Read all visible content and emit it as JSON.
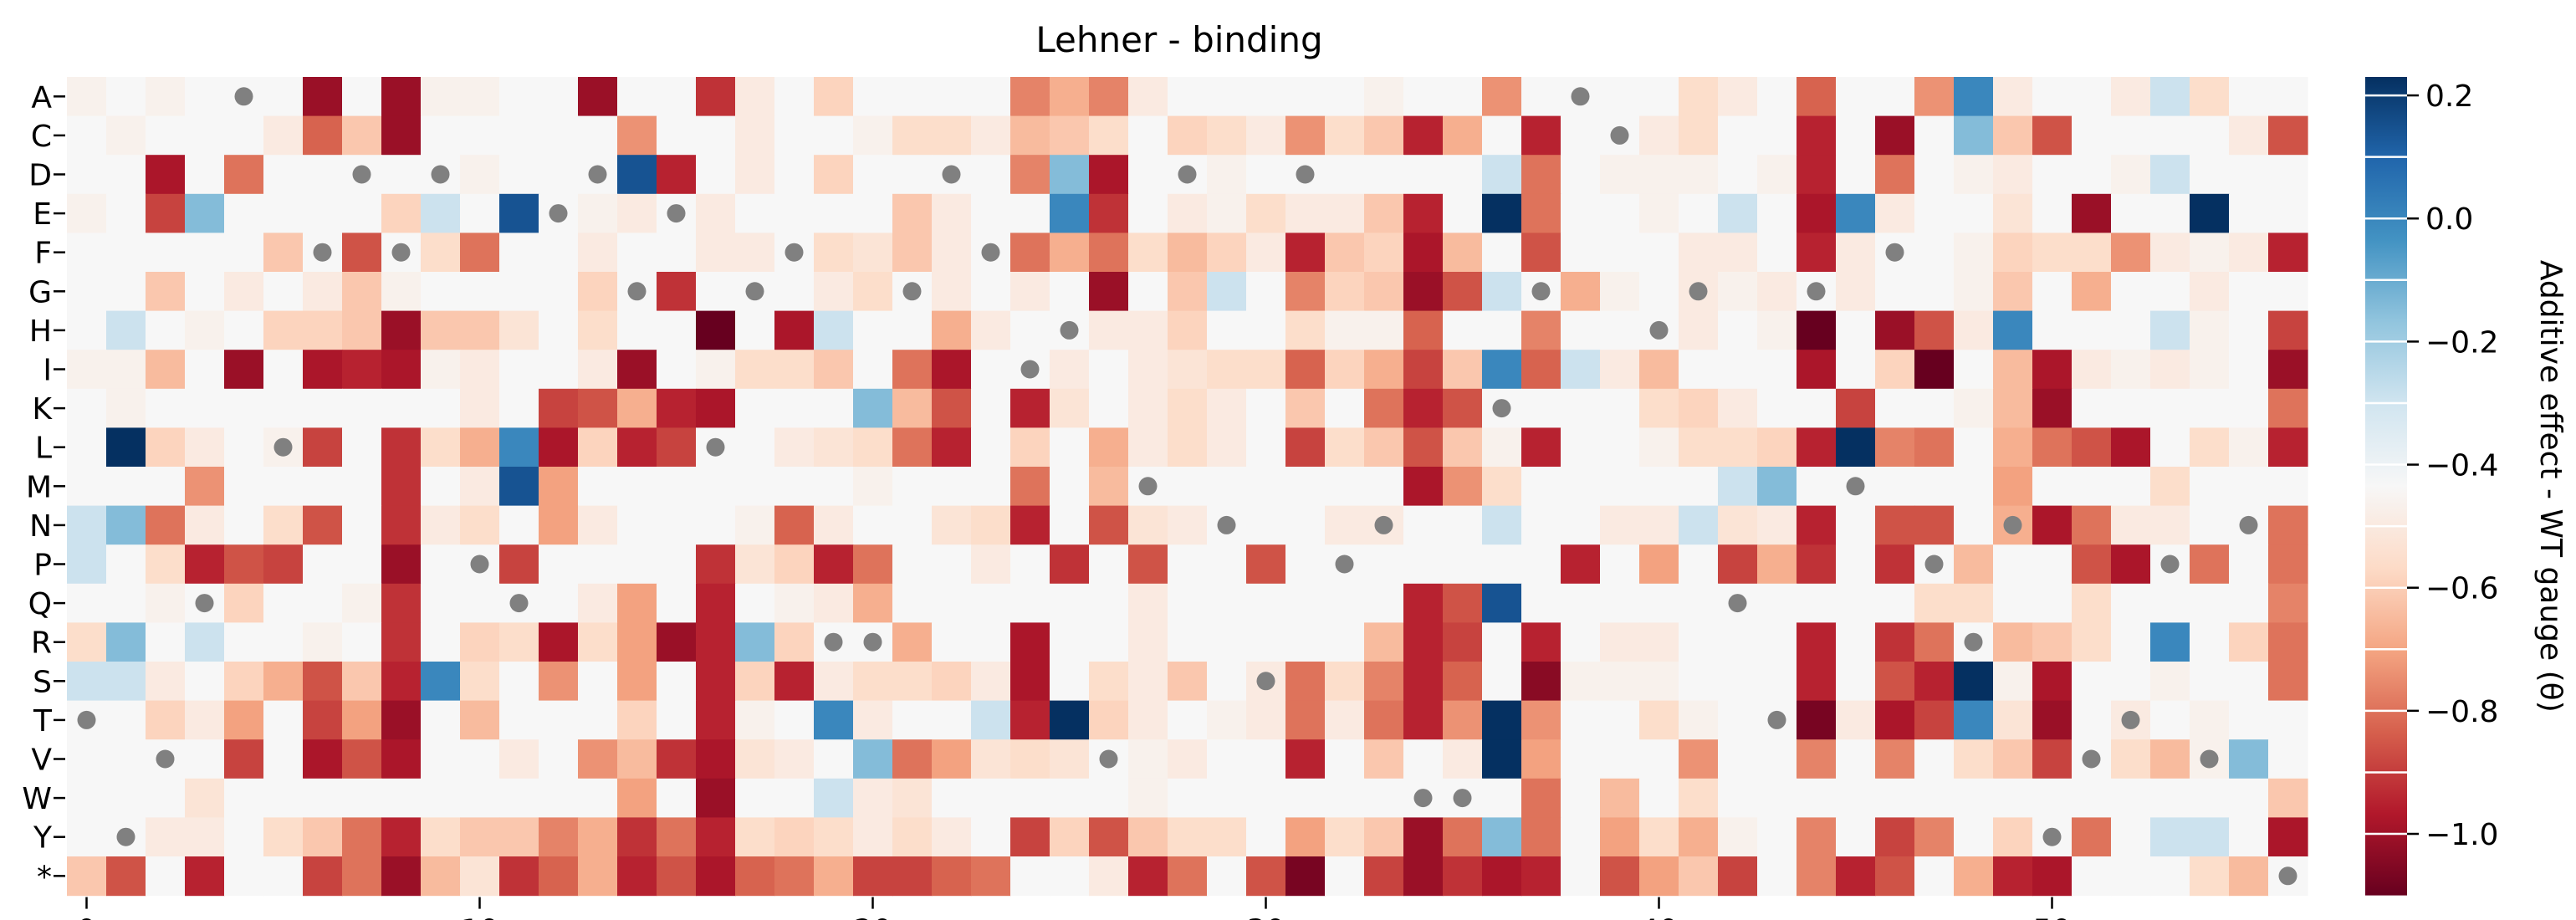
{
  "chart_data": {
    "type": "heatmap",
    "title": "Lehner - binding",
    "xlabel": "",
    "ylabel": "",
    "x_range": [
      0,
      56
    ],
    "x_ticks": [
      0,
      10,
      20,
      30,
      40,
      50
    ],
    "rows": [
      "A",
      "C",
      "D",
      "E",
      "F",
      "G",
      "H",
      "I",
      "K",
      "L",
      "M",
      "N",
      "P",
      "Q",
      "R",
      "S",
      "T",
      "V",
      "W",
      "Y",
      "*"
    ],
    "colorbar": {
      "label": "Additive effect - WT gauge (θ)",
      "ticks": [
        0.2,
        0.0,
        -0.2,
        -0.4,
        -0.6,
        -0.8,
        -1.0
      ],
      "tick_labels": [
        "0.2",
        "0.0",
        "−0.2",
        "−0.4",
        "−0.6",
        "−0.8",
        "−1.0"
      ],
      "vmin": -1.1,
      "vmax": 0.23,
      "colormap": "RdBu"
    },
    "wt_marker_color": "#808080",
    "wt_positions": [
      {
        "row": "A",
        "col": 4
      },
      {
        "row": "A",
        "col": 38
      },
      {
        "row": "C",
        "col": 39
      },
      {
        "row": "D",
        "col": 7
      },
      {
        "row": "D",
        "col": 9
      },
      {
        "row": "D",
        "col": 13
      },
      {
        "row": "D",
        "col": 22
      },
      {
        "row": "D",
        "col": 28
      },
      {
        "row": "D",
        "col": 31
      },
      {
        "row": "E",
        "col": 12
      },
      {
        "row": "E",
        "col": 15
      },
      {
        "row": "F",
        "col": 6
      },
      {
        "row": "F",
        "col": 8
      },
      {
        "row": "F",
        "col": 18
      },
      {
        "row": "F",
        "col": 23
      },
      {
        "row": "F",
        "col": 46
      },
      {
        "row": "G",
        "col": 14
      },
      {
        "row": "G",
        "col": 17
      },
      {
        "row": "G",
        "col": 21
      },
      {
        "row": "G",
        "col": 37
      },
      {
        "row": "G",
        "col": 41
      },
      {
        "row": "G",
        "col": 44
      },
      {
        "row": "H",
        "col": 25
      },
      {
        "row": "H",
        "col": 40
      },
      {
        "row": "I",
        "col": 24
      },
      {
        "row": "K",
        "col": 36
      },
      {
        "row": "L",
        "col": 5
      },
      {
        "row": "L",
        "col": 16
      },
      {
        "row": "M",
        "col": 27
      },
      {
        "row": "M",
        "col": 45
      },
      {
        "row": "N",
        "col": 29
      },
      {
        "row": "N",
        "col": 33
      },
      {
        "row": "N",
        "col": 49
      },
      {
        "row": "N",
        "col": 55
      },
      {
        "row": "P",
        "col": 10
      },
      {
        "row": "P",
        "col": 32
      },
      {
        "row": "P",
        "col": 47
      },
      {
        "row": "P",
        "col": 53
      },
      {
        "row": "Q",
        "col": 3
      },
      {
        "row": "Q",
        "col": 11
      },
      {
        "row": "Q",
        "col": 42
      },
      {
        "row": "R",
        "col": 19
      },
      {
        "row": "R",
        "col": 20
      },
      {
        "row": "R",
        "col": 48
      },
      {
        "row": "S",
        "col": 30
      },
      {
        "row": "T",
        "col": 0
      },
      {
        "row": "T",
        "col": 43
      },
      {
        "row": "T",
        "col": 52
      },
      {
        "row": "V",
        "col": 2
      },
      {
        "row": "V",
        "col": 26
      },
      {
        "row": "V",
        "col": 51
      },
      {
        "row": "V",
        "col": 54
      },
      {
        "row": "W",
        "col": 34
      },
      {
        "row": "W",
        "col": 35
      },
      {
        "row": "Y",
        "col": 1
      },
      {
        "row": "Y",
        "col": 50
      },
      {
        "row": "*",
        "col": 56
      }
    ],
    "values_by_row": {
      "A": [
        -0.05,
        0,
        -0.05,
        0,
        0,
        0,
        -0.95,
        0,
        -0.95,
        -0.05,
        -0.05,
        0,
        0,
        -0.95,
        0,
        0,
        -0.8,
        -0.1,
        0,
        -0.25,
        0,
        0,
        0,
        0,
        -0.55,
        -0.4,
        -0.55,
        -0.1,
        0,
        0,
        0,
        0,
        0,
        -0.05,
        0,
        0,
        -0.5,
        0,
        0,
        0,
        0,
        -0.2,
        -0.1,
        0,
        -0.65,
        0,
        0,
        -0.5,
        0.15,
        -0.1,
        0,
        0,
        -0.1,
        0.05,
        -0.2,
        0,
        0
      ],
      "C": [
        0,
        -0.05,
        0,
        0,
        0,
        -0.1,
        -0.65,
        -0.3,
        -0.95,
        0,
        0,
        0,
        0,
        0,
        -0.5,
        0,
        0,
        -0.1,
        0,
        0,
        -0.05,
        -0.2,
        -0.2,
        -0.1,
        -0.35,
        -0.3,
        -0.2,
        0,
        -0.25,
        -0.2,
        -0.1,
        -0.5,
        -0.2,
        -0.3,
        -0.85,
        -0.4,
        0,
        -0.85,
        0,
        0,
        -0.1,
        -0.2,
        0,
        0,
        -0.85,
        0,
        -0.95,
        0,
        0.1,
        -0.3,
        -0.7,
        0,
        0,
        0,
        0,
        -0.1,
        -0.7
      ],
      "D": [
        0,
        0,
        -0.9,
        0,
        -0.6,
        0,
        0,
        0,
        0,
        0,
        -0.05,
        0,
        0,
        0,
        0.2,
        -0.85,
        0,
        -0.1,
        0,
        -0.25,
        0,
        0,
        0,
        0,
        -0.55,
        0.1,
        -0.9,
        0,
        0,
        -0.05,
        0,
        0,
        0,
        0,
        0,
        0,
        0.05,
        -0.6,
        0,
        -0.05,
        -0.05,
        -0.05,
        0,
        -0.05,
        -0.85,
        0,
        -0.6,
        0,
        -0.05,
        -0.1,
        0,
        0,
        -0.05,
        0.05,
        0,
        0,
        0
      ],
      "E": [
        -0.05,
        0,
        -0.75,
        0.1,
        0,
        0,
        0,
        0,
        -0.25,
        0.05,
        0,
        0.2,
        0,
        -0.05,
        -0.1,
        0,
        -0.1,
        0,
        0,
        0,
        0,
        -0.3,
        -0.1,
        0,
        0,
        0.15,
        -0.8,
        0,
        -0.1,
        -0.05,
        -0.2,
        -0.1,
        -0.1,
        -0.3,
        -0.85,
        0,
        0.3,
        -0.6,
        0,
        0,
        -0.05,
        0,
        0.05,
        0,
        -0.9,
        0.15,
        -0.1,
        0,
        0,
        -0.15,
        0,
        -0.95,
        0,
        0,
        0.3,
        0,
        0
      ],
      "F": [
        0,
        0,
        0,
        0,
        0,
        -0.3,
        0,
        -0.7,
        0,
        -0.2,
        -0.6,
        0,
        0,
        -0.1,
        0,
        0,
        -0.1,
        -0.1,
        0,
        -0.2,
        -0.15,
        -0.3,
        -0.1,
        0,
        -0.6,
        -0.4,
        -0.6,
        -0.2,
        -0.35,
        -0.25,
        -0.1,
        -0.85,
        -0.3,
        -0.25,
        -0.9,
        -0.35,
        0,
        -0.7,
        0,
        0,
        0,
        -0.1,
        -0.1,
        0,
        -0.85,
        -0.1,
        0,
        0,
        -0.05,
        -0.25,
        -0.2,
        -0.2,
        -0.5,
        -0.1,
        -0.05,
        -0.1,
        -0.85
      ],
      "G": [
        0,
        0,
        -0.3,
        0,
        -0.1,
        0,
        -0.1,
        -0.3,
        -0.05,
        0,
        0,
        0,
        0,
        -0.25,
        0,
        -0.8,
        0,
        0,
        0,
        -0.1,
        -0.2,
        0,
        -0.1,
        0,
        -0.1,
        0,
        -0.95,
        0,
        -0.3,
        0.05,
        0,
        -0.55,
        -0.25,
        -0.3,
        -0.95,
        -0.7,
        0.05,
        0,
        -0.4,
        -0.05,
        0,
        -0.1,
        -0.05,
        -0.1,
        0,
        -0.1,
        0,
        0,
        -0.05,
        -0.3,
        0,
        -0.4,
        0,
        0,
        -0.1,
        0,
        0
      ],
      "H": [
        0,
        0.05,
        0,
        -0.05,
        0,
        -0.25,
        -0.25,
        -0.3,
        -0.95,
        -0.3,
        -0.3,
        -0.15,
        0,
        -0.2,
        0,
        0,
        -1.1,
        0,
        -0.9,
        0.05,
        0,
        0,
        -0.4,
        -0.1,
        0,
        0,
        -0.1,
        -0.1,
        -0.25,
        0,
        0,
        -0.2,
        -0.05,
        -0.05,
        -0.65,
        0,
        0,
        -0.55,
        0,
        0,
        0,
        -0.1,
        0,
        -0.05,
        -1.1,
        0,
        -0.95,
        -0.7,
        -0.1,
        0.15,
        0,
        0,
        0,
        0.05,
        -0.05,
        0,
        -0.75
      ],
      "I": [
        -0.05,
        -0.05,
        -0.35,
        0,
        -0.95,
        0,
        -0.9,
        -0.85,
        -0.9,
        -0.05,
        -0.1,
        0,
        0,
        -0.1,
        -0.95,
        0,
        -0.05,
        -0.2,
        -0.2,
        -0.3,
        0,
        -0.6,
        -0.9,
        0,
        0,
        -0.1,
        0,
        -0.1,
        -0.15,
        -0.2,
        -0.2,
        -0.65,
        -0.25,
        -0.4,
        -0.75,
        -0.3,
        0.15,
        -0.65,
        0.05,
        -0.1,
        -0.35,
        0,
        0,
        0,
        -0.9,
        0,
        -0.25,
        -1.1,
        0,
        -0.35,
        -0.9,
        -0.1,
        -0.05,
        -0.1,
        -0.05,
        0,
        -0.95
      ],
      "K": [
        0,
        -0.05,
        0,
        0,
        0,
        0,
        0,
        0,
        0,
        0,
        -0.1,
        0,
        -0.75,
        -0.7,
        -0.4,
        -0.85,
        -0.9,
        0,
        0,
        0,
        0.1,
        -0.35,
        -0.7,
        0,
        -0.85,
        -0.15,
        0,
        -0.1,
        -0.2,
        -0.1,
        0,
        -0.3,
        0,
        -0.6,
        -0.85,
        -0.7,
        0,
        0,
        0,
        0,
        -0.2,
        -0.25,
        -0.1,
        0,
        0,
        -0.75,
        0,
        0,
        -0.05,
        -0.35,
        -0.95,
        0,
        0,
        0,
        0,
        0,
        -0.6
      ],
      "L": [
        0,
        0.25,
        -0.25,
        -0.1,
        0,
        -0.05,
        -0.75,
        0,
        -0.8,
        -0.2,
        -0.4,
        0.15,
        -0.9,
        -0.25,
        -0.85,
        -0.75,
        0,
        0,
        -0.1,
        -0.15,
        -0.2,
        -0.6,
        -0.85,
        0,
        -0.25,
        0,
        -0.4,
        -0.1,
        -0.2,
        -0.1,
        0,
        -0.75,
        -0.2,
        -0.3,
        -0.7,
        -0.3,
        -0.05,
        -0.85,
        0,
        0,
        -0.05,
        -0.2,
        -0.2,
        -0.25,
        -0.85,
        0.3,
        -0.55,
        -0.6,
        0,
        -0.4,
        -0.6,
        -0.7,
        -0.9,
        0,
        -0.2,
        -0.05,
        -0.85
      ],
      "M": [
        0,
        0,
        0,
        -0.5,
        0,
        0,
        0,
        0,
        -0.8,
        0,
        -0.1,
        0.2,
        -0.45,
        0,
        0,
        0,
        0,
        0,
        0,
        0,
        -0.05,
        0,
        0,
        0,
        -0.6,
        0,
        -0.35,
        0,
        0,
        0,
        0,
        0,
        0,
        0,
        -0.9,
        -0.5,
        -0.2,
        0,
        0,
        0,
        0,
        0,
        0.05,
        0.1,
        0,
        0,
        0,
        0,
        0,
        -0.45,
        0,
        0,
        0,
        -0.2,
        0,
        0,
        0
      ],
      "N": [
        0.05,
        0.1,
        -0.6,
        -0.1,
        0,
        -0.2,
        -0.7,
        0,
        -0.8,
        -0.1,
        -0.2,
        0,
        -0.45,
        -0.1,
        0,
        0,
        0,
        -0.05,
        -0.65,
        -0.1,
        0,
        0,
        -0.15,
        -0.2,
        -0.85,
        0,
        -0.7,
        -0.15,
        -0.1,
        0,
        0,
        0,
        -0.1,
        -0.1,
        0,
        0,
        0.05,
        0,
        0,
        -0.1,
        -0.1,
        0.05,
        -0.15,
        -0.1,
        -0.85,
        0,
        -0.7,
        -0.7,
        0,
        -0.4,
        -0.9,
        -0.6,
        -0.1,
        -0.1,
        0,
        0,
        -0.6
      ],
      "P": [
        0.05,
        0,
        -0.2,
        -0.85,
        -0.7,
        -0.75,
        0,
        0,
        -0.95,
        0,
        0,
        -0.75,
        0,
        0,
        0,
        0,
        -0.8,
        -0.15,
        -0.25,
        -0.85,
        -0.6,
        0,
        0,
        -0.1,
        0,
        -0.8,
        0,
        -0.7,
        0,
        0,
        -0.7,
        0,
        0,
        0,
        0,
        0,
        0,
        0,
        -0.85,
        0,
        -0.45,
        0,
        -0.75,
        -0.4,
        -0.8,
        0,
        -0.8,
        0,
        -0.35,
        0,
        0,
        -0.7,
        -0.9,
        0,
        -0.6,
        0,
        -0.6
      ],
      "Q": [
        0,
        0,
        -0.05,
        0,
        -0.25,
        0,
        0,
        -0.05,
        -0.8,
        0,
        0,
        0,
        0,
        -0.1,
        -0.45,
        0,
        -0.85,
        0,
        -0.05,
        -0.1,
        -0.4,
        0,
        0,
        0,
        0,
        0,
        0,
        -0.1,
        0,
        0,
        0,
        0,
        0,
        0,
        -0.85,
        -0.7,
        0.2,
        0,
        0,
        0,
        0,
        0,
        0,
        0,
        0,
        0,
        0,
        -0.2,
        -0.2,
        0,
        0,
        -0.2,
        0,
        0,
        0,
        0,
        -0.55
      ],
      "R": [
        -0.2,
        0.1,
        0,
        0.05,
        0,
        0,
        -0.05,
        0,
        -0.8,
        0,
        -0.25,
        -0.2,
        -0.9,
        -0.2,
        -0.45,
        -0.95,
        -0.85,
        0.1,
        -0.25,
        0,
        0,
        -0.4,
        0,
        0,
        -0.9,
        0,
        0,
        -0.1,
        0,
        0,
        0,
        0,
        0,
        -0.35,
        -0.85,
        -0.75,
        0,
        -0.85,
        0,
        -0.1,
        -0.1,
        0,
        0,
        0,
        -0.85,
        0,
        -0.8,
        -0.6,
        0,
        -0.35,
        -0.3,
        -0.2,
        0,
        0.15,
        0,
        -0.25,
        -0.6
      ],
      "S": [
        0.05,
        0.05,
        -0.1,
        0,
        -0.25,
        -0.4,
        -0.7,
        -0.3,
        -0.85,
        0.15,
        -0.2,
        0,
        -0.5,
        0,
        -0.45,
        0,
        -0.85,
        -0.25,
        -0.85,
        -0.1,
        -0.2,
        -0.2,
        -0.25,
        -0.1,
        -0.9,
        0,
        -0.2,
        -0.1,
        -0.3,
        0,
        -0.1,
        -0.6,
        -0.2,
        -0.55,
        -0.85,
        -0.65,
        0,
        -1.0,
        -0.05,
        -0.05,
        -0.05,
        0,
        0,
        0,
        -0.85,
        0,
        -0.7,
        -0.85,
        0.25,
        -0.05,
        -0.9,
        0,
        0,
        -0.05,
        0,
        0,
        -0.6
      ],
      "T": [
        0,
        0,
        -0.25,
        -0.1,
        -0.45,
        0,
        -0.75,
        -0.45,
        -0.95,
        0,
        -0.35,
        0,
        0,
        0,
        -0.25,
        0,
        -0.85,
        -0.05,
        0,
        0.15,
        -0.1,
        0,
        0,
        0.05,
        -0.85,
        0.3,
        -0.25,
        -0.1,
        0,
        -0.05,
        -0.1,
        -0.6,
        -0.1,
        -0.6,
        -0.85,
        -0.5,
        0.45,
        -0.5,
        0,
        0,
        -0.2,
        -0.05,
        0,
        0,
        -1.05,
        -0.1,
        -0.9,
        -0.75,
        0.15,
        -0.15,
        -0.95,
        0,
        -0.1,
        0,
        -0.05,
        0,
        0
      ],
      "V": [
        0,
        0,
        0,
        0,
        -0.75,
        0,
        -0.9,
        -0.7,
        -0.9,
        0,
        0,
        -0.1,
        0,
        -0.5,
        -0.35,
        -0.8,
        -0.9,
        -0.15,
        -0.1,
        0,
        0.1,
        -0.6,
        -0.45,
        -0.15,
        -0.2,
        -0.15,
        0,
        -0.05,
        -0.1,
        0,
        0,
        -0.85,
        0,
        -0.3,
        0,
        -0.1,
        0.25,
        -0.45,
        0,
        0,
        0,
        -0.5,
        0,
        0,
        -0.55,
        0,
        -0.55,
        0,
        -0.2,
        -0.3,
        -0.75,
        0,
        -0.2,
        -0.35,
        -0.05,
        0.1,
        0
      ],
      "W": [
        0,
        0,
        0,
        -0.15,
        0,
        0,
        0,
        0,
        0,
        0,
        0,
        0,
        0,
        0,
        -0.45,
        0,
        -0.95,
        0,
        0,
        0.05,
        -0.1,
        -0.15,
        0,
        0,
        0,
        0,
        0,
        -0.05,
        0,
        0,
        0,
        0,
        0,
        0,
        0,
        0,
        0,
        -0.6,
        0,
        -0.35,
        0,
        -0.2,
        0,
        0,
        0,
        0,
        0,
        0,
        0,
        0,
        0,
        0,
        0,
        0,
        0,
        0,
        -0.3
      ],
      "Y": [
        0,
        0,
        -0.1,
        -0.1,
        0,
        -0.2,
        -0.3,
        -0.6,
        -0.85,
        -0.2,
        -0.3,
        -0.3,
        -0.55,
        -0.4,
        -0.8,
        -0.6,
        -0.85,
        -0.2,
        -0.25,
        -0.2,
        -0.1,
        -0.2,
        -0.1,
        0,
        -0.75,
        -0.25,
        -0.7,
        -0.3,
        -0.2,
        -0.2,
        0,
        -0.45,
        -0.2,
        -0.3,
        -0.95,
        -0.6,
        0.1,
        -0.6,
        0,
        -0.45,
        -0.2,
        -0.4,
        -0.05,
        0,
        -0.55,
        0,
        -0.75,
        -0.55,
        0,
        -0.25,
        0,
        -0.6,
        0,
        0.05,
        0.05,
        0,
        -0.9
      ],
      "*": [
        -0.3,
        -0.7,
        0,
        -0.85,
        0,
        0,
        -0.75,
        -0.6,
        -0.95,
        -0.35,
        -0.15,
        -0.8,
        -0.65,
        -0.4,
        -0.85,
        -0.7,
        -0.9,
        -0.65,
        -0.6,
        -0.4,
        -0.75,
        -0.75,
        -0.65,
        -0.6,
        0,
        0,
        -0.1,
        -0.85,
        -0.6,
        0,
        -0.7,
        -1.05,
        0,
        -0.75,
        -0.95,
        -0.8,
        -0.9,
        -0.85,
        0,
        -0.7,
        -0.45,
        -0.3,
        -0.75,
        0,
        -0.55,
        -0.85,
        -0.7,
        0,
        -0.4,
        -0.85,
        -0.9,
        0,
        0,
        0,
        -0.2,
        -0.35,
        0
      ]
    }
  }
}
